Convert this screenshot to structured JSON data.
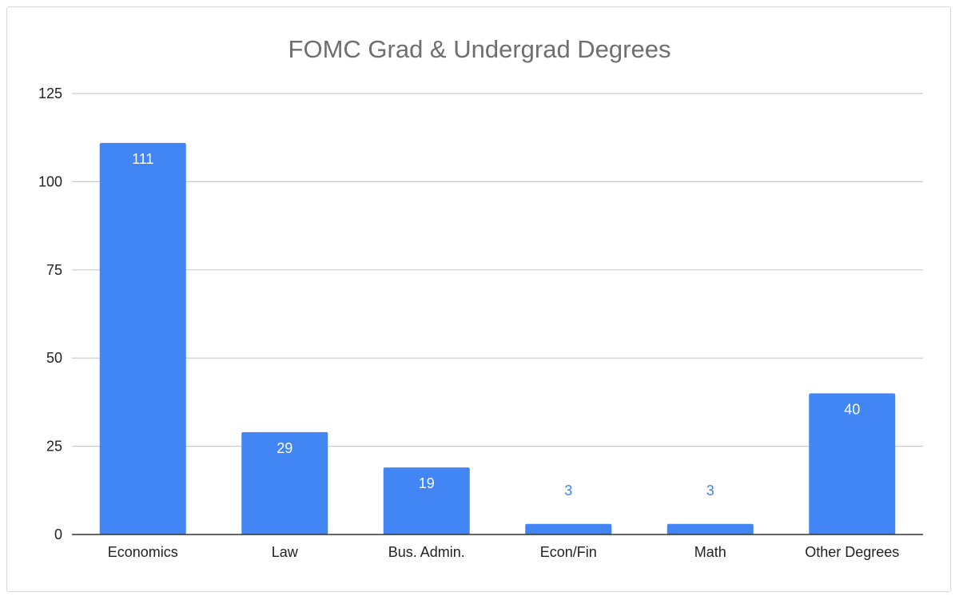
{
  "chart_data": {
    "type": "bar",
    "title": "FOMC Grad & Undergrad Degrees",
    "categories": [
      "Economics",
      "Law",
      "Bus. Admin.",
      "Econ/Fin",
      "Math",
      "Other Degrees"
    ],
    "values": [
      111,
      29,
      19,
      3,
      3,
      40
    ],
    "data_labels": [
      "111",
      "29",
      "19",
      "3",
      "3",
      "40"
    ],
    "ylim": [
      0,
      125
    ],
    "yticks": [
      0,
      25,
      50,
      75,
      100,
      125
    ],
    "xlabel": "",
    "ylabel": "",
    "grid": true,
    "legend": "none",
    "colors": {
      "bar": "#4285f4",
      "label_inside": "#ffffff",
      "label_outside": "#4285f4",
      "grid": "#cccccc",
      "axis": "#333333",
      "title": "#6f6f6f"
    }
  }
}
